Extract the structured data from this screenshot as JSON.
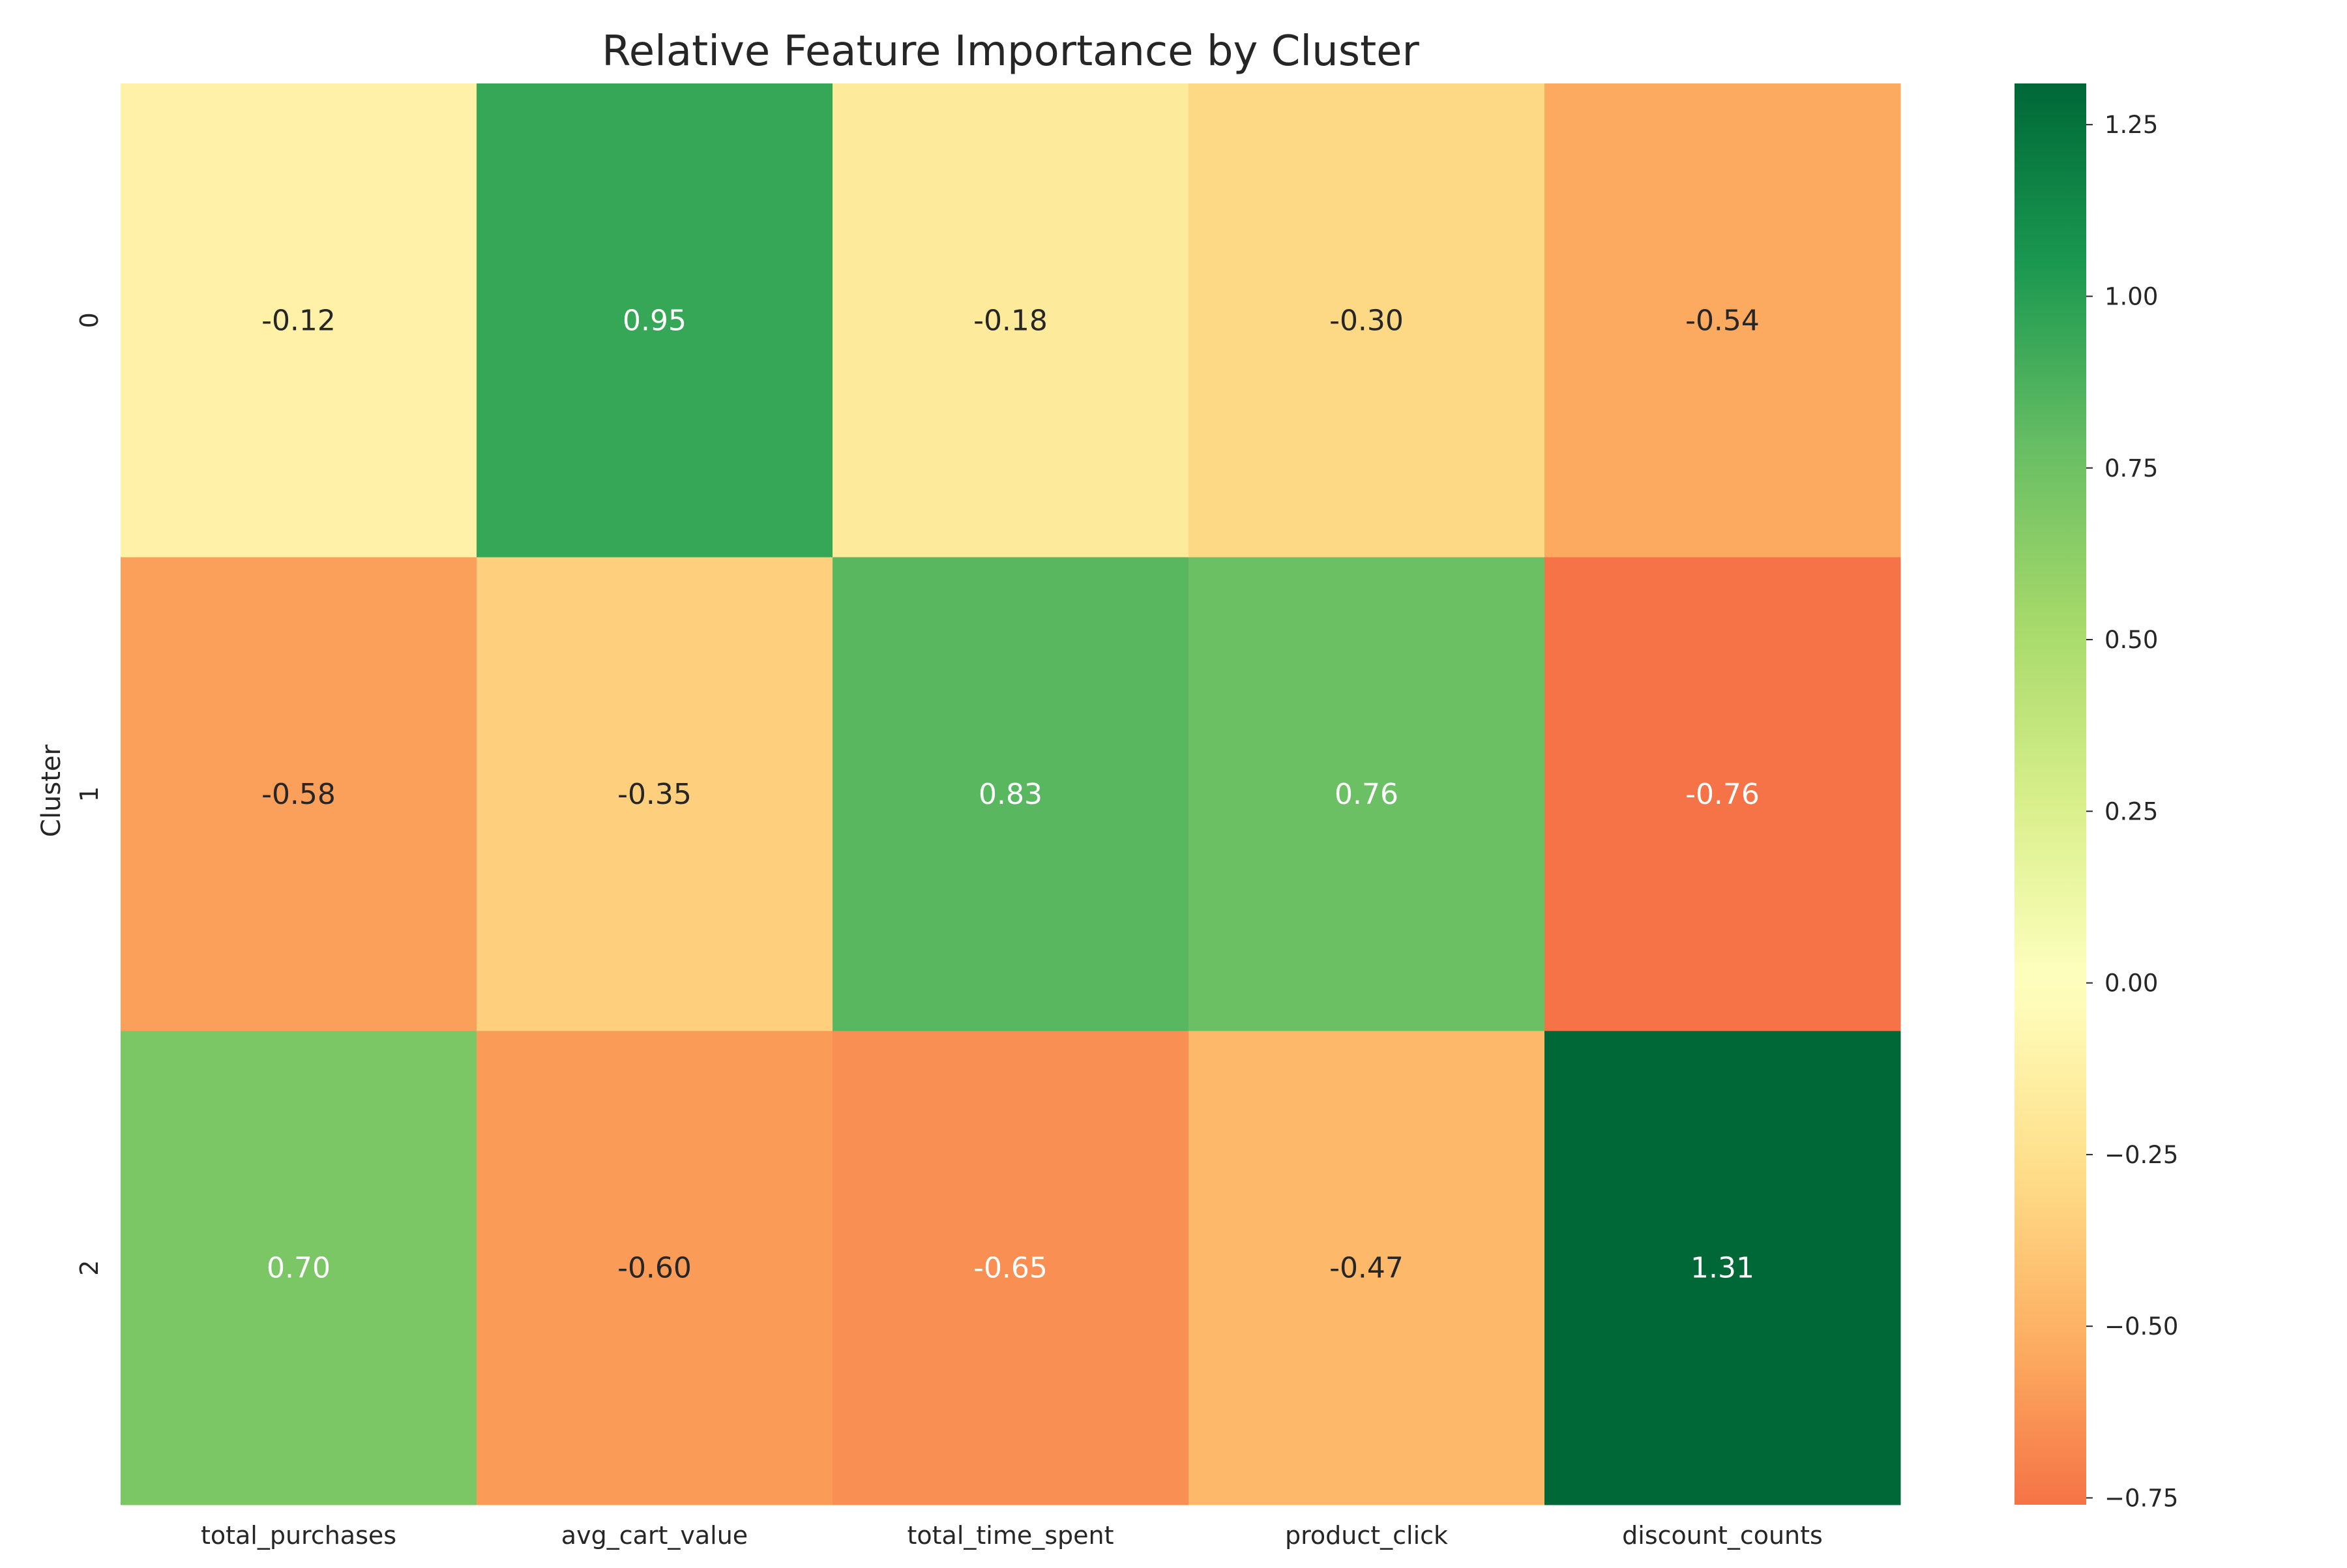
{
  "chart_data": {
    "type": "heatmap",
    "title": "Relative Feature Importance by Cluster",
    "xlabel": "",
    "ylabel": "Cluster",
    "x_categories": [
      "total_purchases",
      "avg_cart_value",
      "total_time_spent",
      "product_click",
      "discount_counts"
    ],
    "y_categories": [
      "0",
      "1",
      "2"
    ],
    "values": [
      [
        -0.12,
        0.95,
        -0.18,
        -0.3,
        -0.54
      ],
      [
        -0.58,
        -0.35,
        0.83,
        0.76,
        -0.76
      ],
      [
        0.7,
        -0.6,
        -0.65,
        -0.47,
        1.31
      ]
    ],
    "value_labels": [
      [
        "-0.12",
        "0.95",
        "-0.18",
        "-0.30",
        "-0.54"
      ],
      [
        "-0.58",
        "-0.35",
        "0.83",
        "0.76",
        "-0.76"
      ],
      [
        "0.70",
        "-0.60",
        "-0.65",
        "-0.47",
        "1.31"
      ]
    ],
    "colormap": "RdYlGn",
    "center": 0.0,
    "vmin": -0.76,
    "vmax": 1.31,
    "colorbar": {
      "ticks": [
        1.25,
        1.0,
        0.75,
        0.5,
        0.25,
        0.0,
        -0.25,
        -0.5,
        -0.75
      ],
      "tick_labels": [
        "1.25",
        "1.00",
        "0.75",
        "0.50",
        "0.25",
        "0.00",
        "−0.25",
        "−0.50",
        "−0.75"
      ]
    },
    "grid": false,
    "legend": "colorbar-right"
  }
}
